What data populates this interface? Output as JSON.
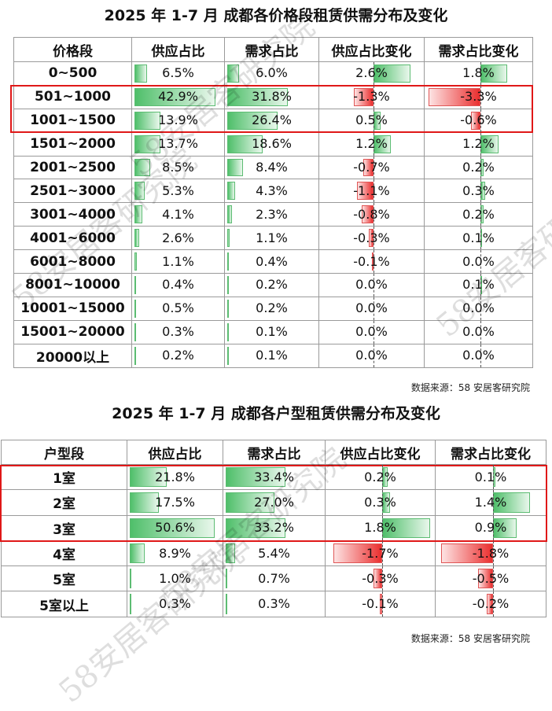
{
  "table1": {
    "title": "2025 年 1-7 月 成都各价格段租赁供需分布及变化",
    "headers": [
      "价格段",
      "供应占比",
      "需求占比",
      "供应占比变化",
      "需求占比变化"
    ],
    "rows": [
      {
        "label": "0~500",
        "supply": "6.5%",
        "demand": "6.0%",
        "supply_change": "2.6%",
        "demand_change": "1.8%"
      },
      {
        "label": "501~1000",
        "supply": "42.9%",
        "demand": "31.8%",
        "supply_change": "-1.3%",
        "demand_change": "-3.3%"
      },
      {
        "label": "1001~1500",
        "supply": "13.9%",
        "demand": "26.4%",
        "supply_change": "0.5%",
        "demand_change": "-0.6%"
      },
      {
        "label": "1501~2000",
        "supply": "13.7%",
        "demand": "18.6%",
        "supply_change": "1.2%",
        "demand_change": "1.2%"
      },
      {
        "label": "2001~2500",
        "supply": "8.5%",
        "demand": "8.4%",
        "supply_change": "-0.7%",
        "demand_change": "0.2%"
      },
      {
        "label": "2501~3000",
        "supply": "5.3%",
        "demand": "4.3%",
        "supply_change": "-1.1%",
        "demand_change": "0.3%"
      },
      {
        "label": "3001~4000",
        "supply": "4.1%",
        "demand": "2.3%",
        "supply_change": "-0.8%",
        "demand_change": "0.2%"
      },
      {
        "label": "4001~6000",
        "supply": "2.6%",
        "demand": "1.1%",
        "supply_change": "-0.3%",
        "demand_change": "0.1%"
      },
      {
        "label": "6001~8000",
        "supply": "1.1%",
        "demand": "0.4%",
        "supply_change": "-0.1%",
        "demand_change": "0.0%"
      },
      {
        "label": "8001~10000",
        "supply": "0.4%",
        "demand": "0.2%",
        "supply_change": "0.0%",
        "demand_change": "0.1%"
      },
      {
        "label": "10001~15000",
        "supply": "0.5%",
        "demand": "0.2%",
        "supply_change": "0.0%",
        "demand_change": "0.0%"
      },
      {
        "label": "15001~20000",
        "supply": "0.3%",
        "demand": "0.1%",
        "supply_change": "0.0%",
        "demand_change": "0.0%"
      },
      {
        "label": "20000以上",
        "supply": "0.2%",
        "demand": "0.1%",
        "supply_change": "0.0%",
        "demand_change": "0.0%"
      }
    ],
    "source": "数据来源：58 安居客研究院"
  },
  "table2": {
    "title": "2025 年 1-7 月 成都各户型租赁供需分布及变化",
    "headers": [
      "户型段",
      "供应占比",
      "需求占比",
      "供应占比变化",
      "需求占比变化"
    ],
    "rows": [
      {
        "label": "1室",
        "supply": "21.8%",
        "demand": "33.4%",
        "supply_change": "0.2%",
        "demand_change": "0.1%"
      },
      {
        "label": "2室",
        "supply": "17.5%",
        "demand": "27.0%",
        "supply_change": "0.3%",
        "demand_change": "1.4%"
      },
      {
        "label": "3室",
        "supply": "50.6%",
        "demand": "33.2%",
        "supply_change": "1.8%",
        "demand_change": "0.9%"
      },
      {
        "label": "4室",
        "supply": "8.9%",
        "demand": "5.4%",
        "supply_change": "-1.7%",
        "demand_change": "-1.8%"
      },
      {
        "label": "5室",
        "supply": "1.0%",
        "demand": "0.7%",
        "supply_change": "-0.3%",
        "demand_change": "-0.5%"
      },
      {
        "label": "5室以上",
        "supply": "0.3%",
        "demand": "0.3%",
        "supply_change": "-0.1%",
        "demand_change": "-0.2%"
      }
    ],
    "source": "数据来源：58 安居客研究院"
  },
  "watermark": "58安居客研究院",
  "colors": {
    "positive_bar": "#4fbf6a",
    "negative_bar": "#ea2e2e",
    "highlight_box": "#e01818",
    "grid_line": "#9a9a9a"
  }
}
